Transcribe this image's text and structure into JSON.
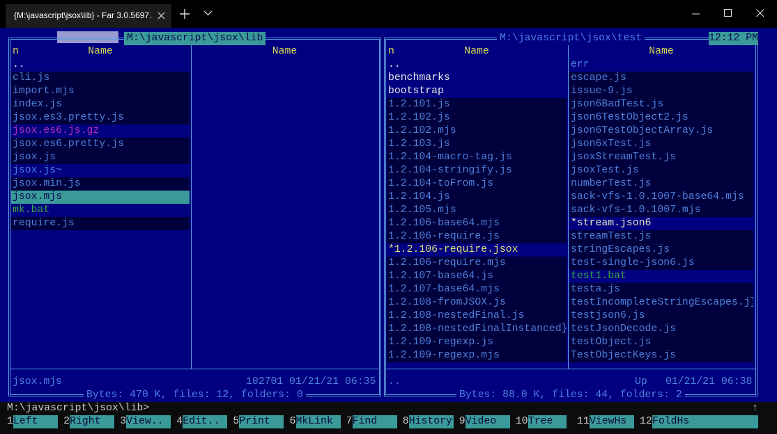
{
  "window": {
    "tab_title": "{M:\\javascript\\jsox\\lib} - Far 3.0.5697."
  },
  "clock": "12:12 PM",
  "left_panel": {
    "title": "M:\\javascript\\jsox\\lib",
    "columns": [
      {
        "sort_mark": "n",
        "header": "Name",
        "items": [
          {
            "name": "..",
            "color": "#e6e6e6",
            "bg": "#000080"
          },
          {
            "name": "cli.js",
            "color": "#4f7fdc",
            "bg": "#00003c"
          },
          {
            "name": "import.mjs",
            "color": "#4f7fdc",
            "bg": "#00003c"
          },
          {
            "name": "index.js",
            "color": "#4f7fdc",
            "bg": "#00003c"
          },
          {
            "name": "jsox.es3.pretty.js",
            "color": "#4f7fdc",
            "bg": "#00003c"
          },
          {
            "name": "jsox.es6.js.gz",
            "color": "#b830b8",
            "bg": "#000080"
          },
          {
            "name": "jsox.es6.pretty.js",
            "color": "#4f7fdc",
            "bg": "#00003c"
          },
          {
            "name": "jsox.js",
            "color": "#4f7fdc",
            "bg": "#00003c"
          },
          {
            "name": "jsox.js~",
            "color": "#4f7fdc",
            "bg": "#000080"
          },
          {
            "name": "jsox.min.js",
            "color": "#4f7fdc",
            "bg": "#00003c"
          },
          {
            "name": "jsox.mjs",
            "color": "#0a0a50",
            "bg": "#3a9a9a"
          },
          {
            "name": "mk.bat",
            "color": "#3aa83a",
            "bg": "#000080"
          },
          {
            "name": "require.js",
            "color": "#4f7fdc",
            "bg": "#00003c"
          }
        ]
      },
      {
        "header": "Name",
        "items": []
      }
    ],
    "status": {
      "name": "jsox.mjs",
      "size": 102701,
      "date": "01/21/21",
      "time": "06:35"
    },
    "summary": "Bytes: 470 K, files: 12, folders: 0"
  },
  "right_panel": {
    "title": "M:\\javascript\\jsox\\test",
    "columns": [
      {
        "sort_mark": "n",
        "header": "Name",
        "items": [
          {
            "name": "..",
            "color": "#e6e6e6",
            "bg": "#000080"
          },
          {
            "name": "benchmarks",
            "color": "#e6e6e6",
            "bg": "#000080"
          },
          {
            "name": "bootstrap",
            "color": "#e6e6e6",
            "bg": "#000080"
          },
          {
            "name": "1.2.101.js",
            "color": "#4f7fdc",
            "bg": "#00003c"
          },
          {
            "name": "1.2.102.js",
            "color": "#4f7fdc",
            "bg": "#00003c"
          },
          {
            "name": "1.2.102.mjs",
            "color": "#4f7fdc",
            "bg": "#00003c"
          },
          {
            "name": "1.2.103.js",
            "color": "#4f7fdc",
            "bg": "#00003c"
          },
          {
            "name": "1.2.104-macro-tag.js",
            "color": "#4f7fdc",
            "bg": "#00003c"
          },
          {
            "name": "1.2.104-stringify.js",
            "color": "#4f7fdc",
            "bg": "#00003c"
          },
          {
            "name": "1.2.104-toFrom.js",
            "color": "#4f7fdc",
            "bg": "#00003c"
          },
          {
            "name": "1.2.104.js",
            "color": "#4f7fdc",
            "bg": "#00003c"
          },
          {
            "name": "1.2.105.mjs",
            "color": "#4f7fdc",
            "bg": "#00003c"
          },
          {
            "name": "1.2.106-base64.mjs",
            "color": "#4f7fdc",
            "bg": "#00003c"
          },
          {
            "name": "1.2.106-require.js",
            "color": "#4f7fdc",
            "bg": "#00003c"
          },
          {
            "name": "*1.2.106-require.jsox",
            "color": "#e0e070",
            "bg": "#000080"
          },
          {
            "name": "1.2.106-require.mjs",
            "color": "#4f7fdc",
            "bg": "#00003c"
          },
          {
            "name": "1.2.107-base64.js",
            "color": "#4f7fdc",
            "bg": "#00003c"
          },
          {
            "name": "1.2.107-base64.mjs",
            "color": "#4f7fdc",
            "bg": "#00003c"
          },
          {
            "name": "1.2.108-fromJSOX.js",
            "color": "#4f7fdc",
            "bg": "#00003c"
          },
          {
            "name": "1.2.108-nestedFinal.js",
            "color": "#4f7fdc",
            "bg": "#00003c"
          },
          {
            "name": "1.2.108-nestedFinalInstanced}",
            "color": "#4f7fdc",
            "bg": "#00003c"
          },
          {
            "name": "1.2.109-regexp.js",
            "color": "#4f7fdc",
            "bg": "#00003c"
          },
          {
            "name": "1.2.109-regexp.mjs",
            "color": "#4f7fdc",
            "bg": "#00003c"
          }
        ]
      },
      {
        "header": "Name",
        "items": [
          {
            "name": "err",
            "color": "#4f7fdc",
            "bg": "#000080"
          },
          {
            "name": "escape.js",
            "color": "#4f7fdc",
            "bg": "#00003c"
          },
          {
            "name": "issue-9.js",
            "color": "#4f7fdc",
            "bg": "#00003c"
          },
          {
            "name": "json6BadTest.js",
            "color": "#4f7fdc",
            "bg": "#00003c"
          },
          {
            "name": "json6TestObject2.js",
            "color": "#4f7fdc",
            "bg": "#00003c"
          },
          {
            "name": "json6TestObjectArray.js",
            "color": "#4f7fdc",
            "bg": "#00003c"
          },
          {
            "name": "json6xTest.js",
            "color": "#4f7fdc",
            "bg": "#00003c"
          },
          {
            "name": "jsoxStreamTest.js",
            "color": "#4f7fdc",
            "bg": "#00003c"
          },
          {
            "name": "jsoxTest.js",
            "color": "#4f7fdc",
            "bg": "#00003c"
          },
          {
            "name": "numberTest.js",
            "color": "#4f7fdc",
            "bg": "#00003c"
          },
          {
            "name": "sack-vfs-1.0.1007-base64.mjs",
            "color": "#4f7fdc",
            "bg": "#00003c"
          },
          {
            "name": "sack-vfs-1.0.1007.mjs",
            "color": "#4f7fdc",
            "bg": "#00003c"
          },
          {
            "name": "*stream.json6",
            "color": "#e6e6c0",
            "bg": "#000080"
          },
          {
            "name": "streamTest.js",
            "color": "#4f7fdc",
            "bg": "#00003c"
          },
          {
            "name": "stringEscapes.js",
            "color": "#4f7fdc",
            "bg": "#00003c"
          },
          {
            "name": "test-single-json6.js",
            "color": "#4f7fdc",
            "bg": "#00003c"
          },
          {
            "name": "test1.bat",
            "color": "#3aa83a",
            "bg": "#000080"
          },
          {
            "name": "testa.js",
            "color": "#4f7fdc",
            "bg": "#00003c"
          },
          {
            "name": "testIncompleteStringEscapes.j}",
            "color": "#4f7fdc",
            "bg": "#00003c"
          },
          {
            "name": "testjson6.js",
            "color": "#4f7fdc",
            "bg": "#00003c"
          },
          {
            "name": "testJsonDecode.js",
            "color": "#4f7fdc",
            "bg": "#00003c"
          },
          {
            "name": "testObject.js",
            "color": "#4f7fdc",
            "bg": "#00003c"
          },
          {
            "name": "TestObjectKeys.js",
            "color": "#4f7fdc",
            "bg": "#00003c"
          }
        ]
      }
    ],
    "status": {
      "name": "..",
      "kind": "Up",
      "date": "01/21/21",
      "time": "06:38"
    },
    "summary": "Bytes: 88.0 K, files: 44, folders: 2"
  },
  "command_line": {
    "prompt": "M:\\javascript\\jsox\\lib>",
    "scroll_marker": "↑"
  },
  "keybar": [
    {
      "key": 1,
      "label": "Left"
    },
    {
      "key": 2,
      "label": "Right"
    },
    {
      "key": 3,
      "label": "View.."
    },
    {
      "key": 4,
      "label": "Edit.."
    },
    {
      "key": 5,
      "label": "Print"
    },
    {
      "key": 6,
      "label": "MkLink"
    },
    {
      "key": 7,
      "label": "Find"
    },
    {
      "key": 8,
      "label": "History"
    },
    {
      "key": 9,
      "label": "Video"
    },
    {
      "key": 10,
      "label": "Tree"
    },
    {
      "key": 11,
      "label": "ViewHs"
    },
    {
      "key": 12,
      "label": "FoldHs"
    }
  ]
}
